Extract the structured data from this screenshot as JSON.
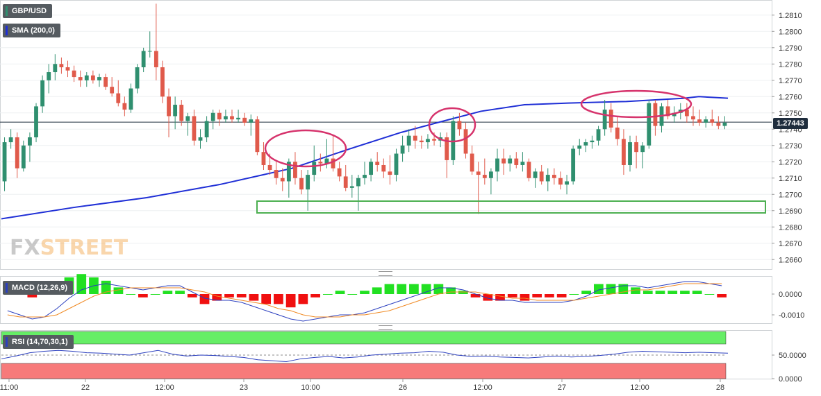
{
  "symbol_label": "GBP/USD",
  "sma_label": "SMA (200,0)",
  "macd_label": "MACD (12,26,9)",
  "rsi_label": "RSI (14,70,30,1)",
  "current_price_label": "1.27443",
  "logo": {
    "fx": "FX",
    "street": "STREET"
  },
  "colors": {
    "up": "#2f8f6f",
    "down": "#e05a4b",
    "sma": "#1f2fd6",
    "annotation_ellipse": "#d6336c",
    "annotation_box": "#4caf50",
    "macd_line": "#2b3fbf",
    "signal_line": "#f08a24",
    "hist_up": "#22e022",
    "hist_down": "#f01010",
    "rsi_line": "#2b3fbf",
    "overbought_band": "#66ee66",
    "oversold_band": "#f77a7a"
  },
  "chart_data": [
    {
      "type": "candlestick",
      "title": "GBP/USD",
      "yticks": [
        "1.2810",
        "1.2800",
        "1.2790",
        "1.2780",
        "1.2770",
        "1.2760",
        "1.2750",
        "1.2740",
        "1.2730",
        "1.2720",
        "1.2710",
        "1.2700",
        "1.2690",
        "1.2680",
        "1.2670",
        "1.2660"
      ],
      "ylim": [
        1.2655,
        1.2818
      ],
      "xticks": [
        "11:00",
        "22",
        "12:00",
        "23",
        "10:00",
        "26",
        "12:00",
        "27",
        "12:00",
        "28"
      ],
      "last_price": 1.27443,
      "ohlc": [
        [
          1.2708,
          1.2735,
          1.2702,
          1.2732
        ],
        [
          1.2732,
          1.274,
          1.2728,
          1.2735
        ],
        [
          1.2735,
          1.2738,
          1.271,
          1.2716
        ],
        [
          1.2716,
          1.2733,
          1.2714,
          1.273
        ],
        [
          1.273,
          1.2738,
          1.272,
          1.2735
        ],
        [
          1.2735,
          1.2756,
          1.2732,
          1.2754
        ],
        [
          1.2754,
          1.2773,
          1.275,
          1.277
        ],
        [
          1.277,
          1.278,
          1.2762,
          1.2775
        ],
        [
          1.2775,
          1.2786,
          1.277,
          1.278
        ],
        [
          1.278,
          1.2784,
          1.2774,
          1.2778
        ],
        [
          1.2778,
          1.2782,
          1.2772,
          1.2776
        ],
        [
          1.2776,
          1.2779,
          1.2769,
          1.2772
        ],
        [
          1.2772,
          1.2776,
          1.2766,
          1.277
        ],
        [
          1.277,
          1.2775,
          1.2766,
          1.2773
        ],
        [
          1.2773,
          1.2776,
          1.2768,
          1.277
        ],
        [
          1.277,
          1.2774,
          1.2766,
          1.2772
        ],
        [
          1.2772,
          1.2774,
          1.2764,
          1.2766
        ],
        [
          1.2766,
          1.2772,
          1.276,
          1.2762
        ],
        [
          1.2762,
          1.277,
          1.2754,
          1.2756
        ],
        [
          1.2756,
          1.276,
          1.2748,
          1.2752
        ],
        [
          1.2752,
          1.2768,
          1.275,
          1.2765
        ],
        [
          1.2765,
          1.278,
          1.2762,
          1.2778
        ],
        [
          1.2778,
          1.279,
          1.2775,
          1.2788
        ],
        [
          1.2788,
          1.28,
          1.2784,
          1.2788
        ],
        [
          1.2788,
          1.2817,
          1.277,
          1.2778
        ],
        [
          1.2778,
          1.2782,
          1.2756,
          1.276
        ],
        [
          1.276,
          1.2765,
          1.2735,
          1.2748
        ],
        [
          1.2748,
          1.276,
          1.274,
          1.2755
        ],
        [
          1.2755,
          1.2758,
          1.2742,
          1.2745
        ],
        [
          1.2745,
          1.275,
          1.2736,
          1.2748
        ],
        [
          1.2748,
          1.2752,
          1.273,
          1.2733
        ],
        [
          1.2733,
          1.274,
          1.2728,
          1.2735
        ],
        [
          1.2735,
          1.2748,
          1.2732,
          1.2745
        ],
        [
          1.2745,
          1.2752,
          1.274,
          1.275
        ],
        [
          1.275,
          1.2752,
          1.2742,
          1.2746
        ],
        [
          1.2746,
          1.2752,
          1.2744,
          1.2748
        ],
        [
          1.2748,
          1.2752,
          1.2744,
          1.2746
        ],
        [
          1.2746,
          1.2752,
          1.2744,
          1.2747
        ],
        [
          1.2747,
          1.275,
          1.2742,
          1.2744
        ],
        [
          1.2744,
          1.2749,
          1.2736,
          1.2746
        ],
        [
          1.2746,
          1.2748,
          1.2724,
          1.2726
        ],
        [
          1.2726,
          1.2732,
          1.2715,
          1.2718
        ],
        [
          1.2718,
          1.2725,
          1.2712,
          1.2715
        ],
        [
          1.2715,
          1.272,
          1.2706,
          1.271
        ],
        [
          1.271,
          1.2716,
          1.2702,
          1.2708
        ],
        [
          1.2708,
          1.2722,
          1.2698,
          1.272
        ],
        [
          1.272,
          1.2726,
          1.2706,
          1.271
        ],
        [
          1.271,
          1.2715,
          1.27,
          1.2703
        ],
        [
          1.2703,
          1.2715,
          1.269,
          1.2712
        ],
        [
          1.2712,
          1.273,
          1.2708,
          1.272
        ],
        [
          1.272,
          1.2725,
          1.2714,
          1.2719
        ],
        [
          1.2719,
          1.2734,
          1.2716,
          1.2722
        ],
        [
          1.2722,
          1.2736,
          1.2714,
          1.2716
        ],
        [
          1.2716,
          1.272,
          1.2708,
          1.2711
        ],
        [
          1.2711,
          1.2718,
          1.2702,
          1.2704
        ],
        [
          1.2704,
          1.2712,
          1.2698,
          1.2705
        ],
        [
          1.2705,
          1.2712,
          1.269,
          1.271
        ],
        [
          1.271,
          1.272,
          1.2706,
          1.2712
        ],
        [
          1.2712,
          1.2722,
          1.2708,
          1.272
        ],
        [
          1.272,
          1.2726,
          1.2714,
          1.2718
        ],
        [
          1.2718,
          1.2722,
          1.271,
          1.2714
        ],
        [
          1.2714,
          1.2724,
          1.2706,
          1.2712
        ],
        [
          1.2712,
          1.2728,
          1.2708,
          1.2725
        ],
        [
          1.2725,
          1.2736,
          1.272,
          1.273
        ],
        [
          1.273,
          1.274,
          1.2726,
          1.2736
        ],
        [
          1.2736,
          1.2742,
          1.2728,
          1.2733
        ],
        [
          1.2733,
          1.2736,
          1.2728,
          1.2732
        ],
        [
          1.2732,
          1.2737,
          1.2728,
          1.2734
        ],
        [
          1.2734,
          1.2738,
          1.273,
          1.2733
        ],
        [
          1.2733,
          1.2738,
          1.2729,
          1.2735
        ],
        [
          1.2735,
          1.2738,
          1.271,
          1.2721
        ],
        [
          1.2721,
          1.2748,
          1.2718,
          1.2745
        ],
        [
          1.2745,
          1.275,
          1.2736,
          1.274
        ],
        [
          1.274,
          1.2744,
          1.2722,
          1.2725
        ],
        [
          1.2725,
          1.273,
          1.2712,
          1.2714
        ],
        [
          1.2714,
          1.272,
          1.2688,
          1.2712
        ],
        [
          1.2712,
          1.2722,
          1.2706,
          1.271
        ],
        [
          1.271,
          1.2716,
          1.27,
          1.2714
        ],
        [
          1.2714,
          1.2728,
          1.2708,
          1.2722
        ],
        [
          1.2722,
          1.2728,
          1.2712,
          1.2719
        ],
        [
          1.2719,
          1.2724,
          1.2714,
          1.2722
        ],
        [
          1.2722,
          1.2726,
          1.2716,
          1.2718
        ],
        [
          1.2718,
          1.2726,
          1.2714,
          1.272
        ],
        [
          1.272,
          1.2722,
          1.2708,
          1.271
        ],
        [
          1.271,
          1.2716,
          1.2704,
          1.2714
        ],
        [
          1.2714,
          1.2718,
          1.2706,
          1.2708
        ],
        [
          1.2708,
          1.2716,
          1.2702,
          1.2712
        ],
        [
          1.2712,
          1.2716,
          1.2706,
          1.271
        ],
        [
          1.271,
          1.2714,
          1.2703,
          1.2706
        ],
        [
          1.2706,
          1.2712,
          1.27,
          1.2708
        ],
        [
          1.2708,
          1.273,
          1.2706,
          1.2728
        ],
        [
          1.2728,
          1.2734,
          1.2724,
          1.273
        ],
        [
          1.273,
          1.2734,
          1.2726,
          1.2732
        ],
        [
          1.2732,
          1.2736,
          1.2728,
          1.2733
        ],
        [
          1.2733,
          1.2742,
          1.273,
          1.274
        ],
        [
          1.274,
          1.2758,
          1.2736,
          1.2752
        ],
        [
          1.2752,
          1.2756,
          1.2738,
          1.2741
        ],
        [
          1.2741,
          1.2748,
          1.273,
          1.2734
        ],
        [
          1.2734,
          1.274,
          1.2712,
          1.2718
        ],
        [
          1.2718,
          1.2736,
          1.2714,
          1.2732
        ],
        [
          1.2732,
          1.2736,
          1.2716,
          1.2726
        ],
        [
          1.2726,
          1.2732,
          1.2716,
          1.273
        ],
        [
          1.273,
          1.2758,
          1.2728,
          1.2756
        ],
        [
          1.2756,
          1.2758,
          1.2736,
          1.2742
        ],
        [
          1.2742,
          1.2756,
          1.2738,
          1.2754
        ],
        [
          1.2754,
          1.2758,
          1.2746,
          1.2748
        ],
        [
          1.2748,
          1.2754,
          1.2744,
          1.275
        ],
        [
          1.275,
          1.2756,
          1.2746,
          1.2752
        ],
        [
          1.2752,
          1.2756,
          1.2744,
          1.2748
        ],
        [
          1.2748,
          1.2754,
          1.2742,
          1.2746
        ],
        [
          1.2746,
          1.2752,
          1.2742,
          1.2744
        ],
        [
          1.2744,
          1.2748,
          1.2741,
          1.2746
        ],
        [
          1.2746,
          1.2752,
          1.2742,
          1.2744
        ],
        [
          1.2744,
          1.2748,
          1.274,
          1.2742
        ],
        [
          1.2742,
          1.2748,
          1.274,
          1.2744
        ]
      ],
      "sma200": [
        [
          0,
          1.2685
        ],
        [
          0.1,
          1.2692
        ],
        [
          0.2,
          1.2698
        ],
        [
          0.3,
          1.2706
        ],
        [
          0.4,
          1.2716
        ],
        [
          0.48,
          1.2728
        ],
        [
          0.55,
          1.2738
        ],
        [
          0.6,
          1.2744
        ],
        [
          0.66,
          1.2751
        ],
        [
          0.72,
          1.2755
        ],
        [
          0.78,
          1.2756
        ],
        [
          0.86,
          1.2757
        ],
        [
          0.9,
          1.2758
        ],
        [
          0.94,
          1.2759
        ],
        [
          0.96,
          1.276
        ],
        [
          1.0,
          1.2759
        ]
      ],
      "annotations": [
        {
          "kind": "ellipse",
          "around": "1.2730 (23, 10:00)"
        },
        {
          "kind": "ellipse",
          "around": "1.2745 (26)"
        },
        {
          "kind": "ellipse",
          "around": "1.2755 (27, 12:00)"
        },
        {
          "kind": "support-box",
          "range": [
            1.2692,
            1.2698
          ]
        }
      ]
    },
    {
      "type": "line",
      "title": "MACD (12,26,9)",
      "yticks": [
        "0.0000",
        "-0.0010"
      ],
      "ylim": [
        -0.0014,
        0.0008
      ],
      "series": [
        {
          "name": "MACD (12,26,9)",
          "values": [
            -0.0008,
            -0.001,
            -0.0012,
            -0.0011,
            -0.0007,
            -0.0002,
            0.0002,
            0.0004,
            0.0005,
            0.0004,
            0.0003,
            0.0002,
            0.0003,
            0.0004,
            0.0004,
            0.0001,
            -0.0002,
            -0.0003,
            -0.0003,
            -0.0004,
            -0.0006,
            -0.0008,
            -0.001,
            -0.0012,
            -0.0013,
            -0.0012,
            -0.0011,
            -0.001,
            -0.001,
            -0.0009,
            -0.0007,
            -0.0005,
            -0.0003,
            -0.0001,
            0.0001,
            0.0003,
            0.0003,
            0.0002,
            0.0,
            -0.0002,
            -0.0003,
            -0.0003,
            -0.0004,
            -0.0004,
            -0.0004,
            -0.0004,
            -0.0003,
            -0.0001,
            0.0002,
            0.0003,
            0.0004,
            0.0004,
            0.0003,
            0.0004,
            0.0005,
            0.0006,
            0.0006,
            0.0005,
            0.0004
          ]
        },
        {
          "name": "Signal",
          "values": [
            -0.001,
            -0.0011,
            -0.0011,
            -0.0011,
            -0.001,
            -0.0007,
            -0.0004,
            -0.0001,
            0.0001,
            0.0002,
            0.0003,
            0.0003,
            0.0003,
            0.0003,
            0.0003,
            0.0002,
            0.0001,
            -0.0001,
            -0.0002,
            -0.0003,
            -0.0004,
            -0.0005,
            -0.0007,
            -0.0008,
            -0.001,
            -0.0011,
            -0.0011,
            -0.0011,
            -0.001,
            -0.001,
            -0.0009,
            -0.0008,
            -0.0006,
            -0.0004,
            -0.0002,
            0.0,
            0.0001,
            0.0001,
            0.0001,
            0.0,
            -0.0001,
            -0.0002,
            -0.0002,
            -0.0003,
            -0.0003,
            -0.0003,
            -0.0003,
            -0.0002,
            -0.0001,
            0.0,
            0.0001,
            0.0002,
            0.0002,
            0.0003,
            0.0004,
            0.0005,
            0.0005,
            0.0005,
            0.0005
          ]
        }
      ]
    },
    {
      "type": "line",
      "title": "RSI (14,70,30,1)",
      "yticks": [
        "50.0000",
        "0.0000"
      ],
      "ylim": [
        0,
        100
      ],
      "series": [
        {
          "name": "RSI (14,70,30,1)",
          "values": [
            42,
            48,
            55,
            58,
            60,
            58,
            55,
            54,
            52,
            50,
            55,
            60,
            52,
            48,
            50,
            49,
            47,
            45,
            40,
            38,
            36,
            42,
            45,
            47,
            44,
            46,
            50,
            52,
            54,
            55,
            58,
            56,
            50,
            47,
            48,
            46,
            45,
            44,
            46,
            48,
            46,
            47,
            49,
            52,
            56,
            58,
            57,
            56,
            55,
            56,
            55,
            54
          ]
        }
      ]
    }
  ]
}
